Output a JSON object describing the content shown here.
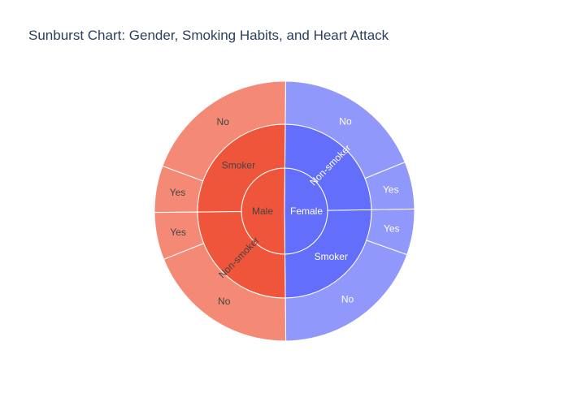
{
  "chart_data": {
    "type": "sunburst",
    "title": "Sunburst Chart: Gender, Smoking Habits, and Heart Attack",
    "colors": {
      "Female": "#636efa",
      "Male": "#ef553b",
      "Female_outer": "#9198fb",
      "Male_outer": "#f48a76",
      "Female_label": "#ffffff",
      "Male_label": "#444444",
      "border": "#ffffff"
    },
    "hierarchy": [
      {
        "label": "Female",
        "value": 497,
        "children": [
          {
            "label": "Smoker",
            "value": 251,
            "children": [
              {
                "label": "No",
                "value": 194
              },
              {
                "label": "Yes",
                "value": 57
              }
            ]
          },
          {
            "label": "Non-smoker",
            "value": 246,
            "children": [
              {
                "label": "Yes",
                "value": 59
              },
              {
                "label": "No",
                "value": 187
              }
            ]
          }
        ]
      },
      {
        "label": "Male",
        "value": 503,
        "children": [
          {
            "label": "Smoker",
            "value": 253,
            "children": [
              {
                "label": "No",
                "value": 195
              },
              {
                "label": "Yes",
                "value": 58
              }
            ]
          },
          {
            "label": "Non-smoker",
            "value": 250,
            "children": [
              {
                "label": "Yes",
                "value": 59
              },
              {
                "label": "No",
                "value": 191
              }
            ]
          }
        ]
      }
    ]
  }
}
